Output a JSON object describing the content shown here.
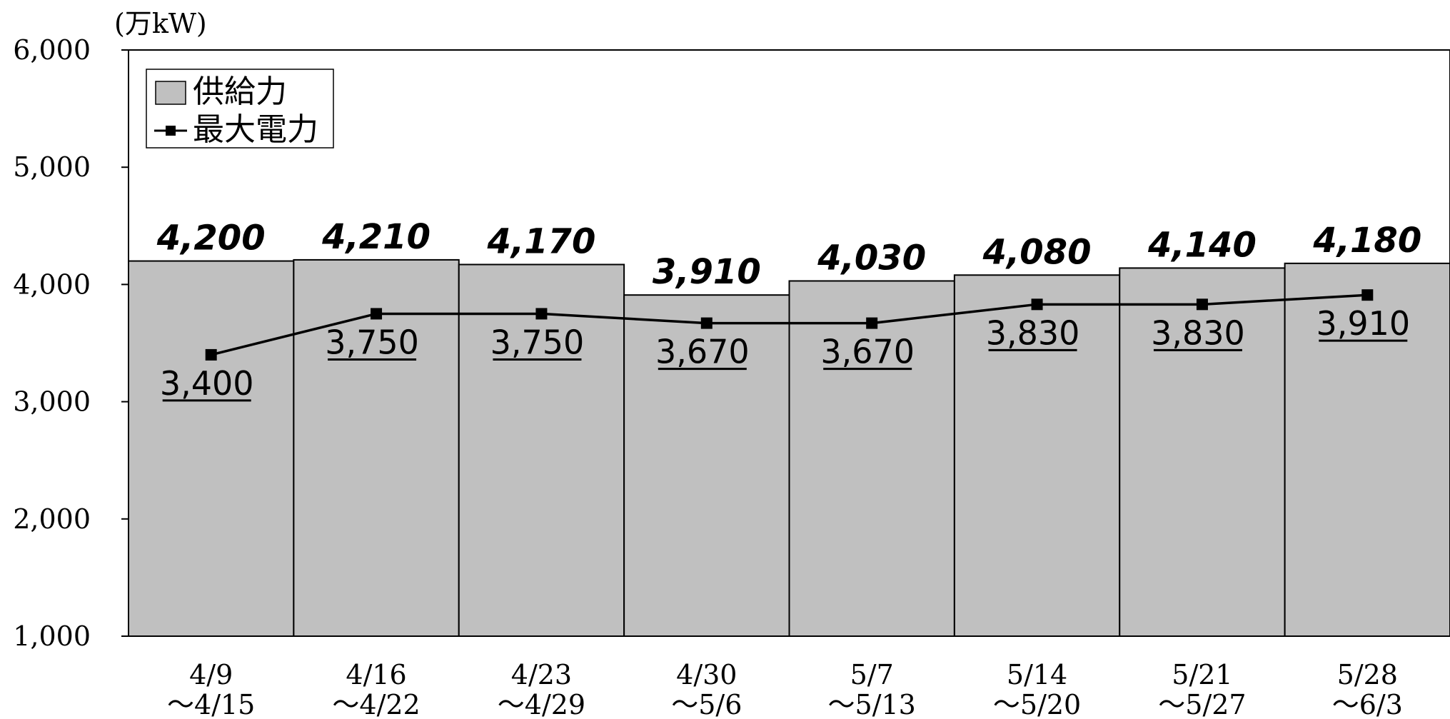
{
  "chart_data": {
    "type": "bar",
    "unit_label": "(万kW)",
    "ylim": [
      1000,
      6000
    ],
    "yticks": [
      "1,000",
      "2,000",
      "3,000",
      "4,000",
      "5,000",
      "6,000"
    ],
    "ytick_values": [
      1000,
      2000,
      3000,
      4000,
      5000,
      6000
    ],
    "grid": false,
    "legend_position": "top-left",
    "categories": [
      [
        "4/9",
        "～4/15"
      ],
      [
        "4/16",
        "～4/22"
      ],
      [
        "4/23",
        "～4/29"
      ],
      [
        "4/30",
        "～5/6"
      ],
      [
        "5/7",
        "～5/13"
      ],
      [
        "5/14",
        "～5/20"
      ],
      [
        "5/21",
        "～5/27"
      ],
      [
        "5/28",
        "～6/3"
      ]
    ],
    "series": [
      {
        "name": "供給力",
        "type": "bar",
        "color": "#c0c0c0",
        "values": [
          4200,
          4210,
          4170,
          3910,
          4030,
          4080,
          4140,
          4180
        ],
        "labels": [
          "4,200",
          "4,210",
          "4,170",
          "3,910",
          "4,030",
          "4,080",
          "4,140",
          "4,180"
        ]
      },
      {
        "name": "最大電力",
        "type": "line",
        "color": "#000000",
        "values": [
          3400,
          3750,
          3750,
          3670,
          3670,
          3830,
          3830,
          3910
        ],
        "labels": [
          "3,400",
          "3,750",
          "3,750",
          "3,670",
          "3,670",
          "3,830",
          "3,830",
          "3,910"
        ]
      }
    ]
  }
}
